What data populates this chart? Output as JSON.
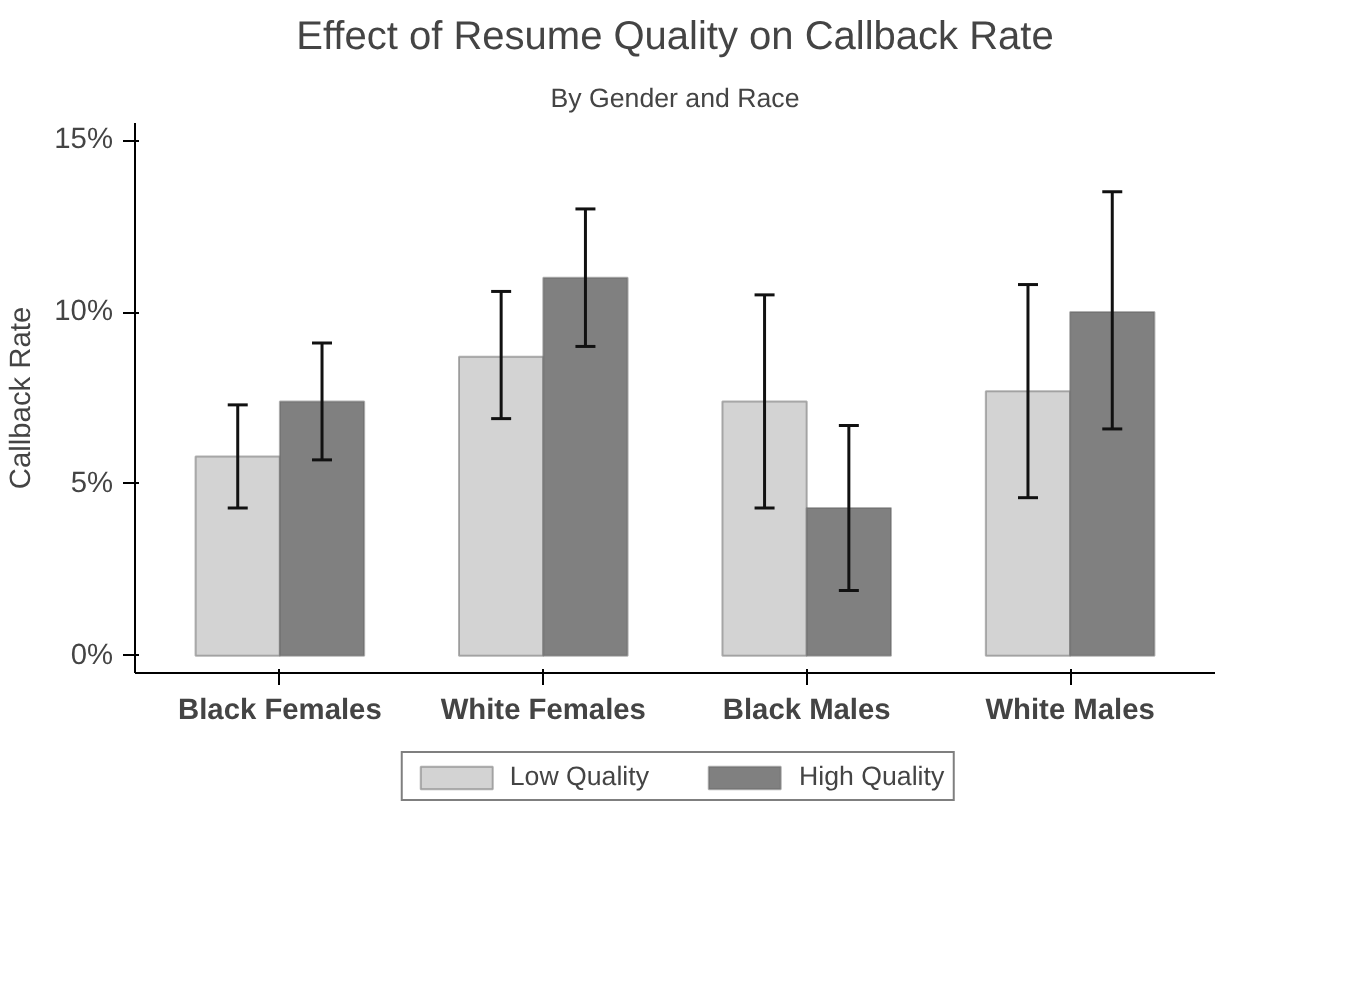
{
  "chart_data": {
    "type": "bar",
    "title": "Effect of Resume Quality on Callback Rate",
    "subtitle": "By Gender and Race",
    "ylabel": "Callback Rate",
    "categories": [
      "Black Females",
      "White Females",
      "Black Males",
      "White Males"
    ],
    "series": [
      {
        "name": "Low Quality",
        "color": "#d3d3d3",
        "values": [
          5.8,
          8.7,
          7.4,
          7.7
        ],
        "errors": [
          [
            4.3,
            7.3
          ],
          [
            6.9,
            10.6
          ],
          [
            4.3,
            10.5
          ],
          [
            4.6,
            10.8
          ]
        ]
      },
      {
        "name": "High Quality",
        "color": "#808080",
        "values": [
          7.4,
          11.0,
          4.3,
          10.0
        ],
        "errors": [
          [
            5.7,
            9.1
          ],
          [
            9.0,
            13.0
          ],
          [
            1.9,
            6.7
          ],
          [
            6.6,
            13.5
          ]
        ]
      }
    ],
    "ylim": [
      -0.5,
      15.5
    ],
    "yticks": [
      {
        "value": 0,
        "label": "0%"
      },
      {
        "value": 5,
        "label": "5%"
      },
      {
        "value": 10,
        "label": "10%"
      },
      {
        "value": 15,
        "label": "15%"
      }
    ],
    "grid": false,
    "legend": "bottom"
  }
}
